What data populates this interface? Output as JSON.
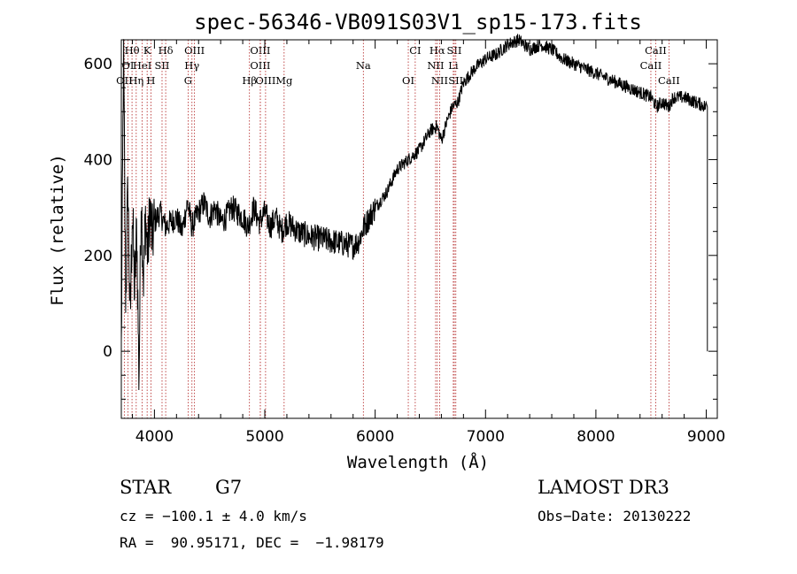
{
  "chart_data": {
    "type": "line",
    "title": "spec-56346-VB091S03V1_sp15-173.fits",
    "xlabel": "Wavelength (Å)",
    "ylabel": "Flux (relative)",
    "xlim": [
      3700,
      9100
    ],
    "ylim": [
      -140,
      650
    ],
    "x_ticks": [
      4000,
      5000,
      6000,
      7000,
      8000,
      9000
    ],
    "y_ticks": [
      0,
      200,
      400,
      600
    ],
    "series": [
      {
        "name": "flux",
        "x": [
          3700,
          3720,
          3740,
          3760,
          3780,
          3800,
          3820,
          3840,
          3860,
          3880,
          3900,
          3920,
          3940,
          3960,
          3980,
          4000,
          4050,
          4100,
          4150,
          4200,
          4250,
          4300,
          4340,
          4400,
          4450,
          4500,
          4550,
          4600,
          4650,
          4700,
          4750,
          4800,
          4850,
          4900,
          4950,
          5000,
          5050,
          5100,
          5150,
          5200,
          5300,
          5400,
          5500,
          5600,
          5700,
          5800,
          5850,
          5900,
          5950,
          6000,
          6100,
          6200,
          6300,
          6400,
          6500,
          6560,
          6600,
          6650,
          6700,
          6750,
          6800,
          6900,
          7000,
          7100,
          7200,
          7300,
          7400,
          7500,
          7600,
          7700,
          7800,
          7900,
          8000,
          8100,
          8200,
          8300,
          8400,
          8500,
          8550,
          8600,
          8660,
          8700,
          8800,
          8900,
          9000,
          9010
        ],
        "y": [
          0,
          620,
          100,
          350,
          50,
          300,
          120,
          260,
          -60,
          330,
          150,
          280,
          200,
          300,
          230,
          270,
          290,
          260,
          270,
          280,
          250,
          310,
          260,
          290,
          310,
          280,
          300,
          270,
          280,
          300,
          290,
          280,
          260,
          300,
          270,
          290,
          260,
          280,
          250,
          270,
          250,
          240,
          235,
          230,
          225,
          220,
          230,
          260,
          280,
          300,
          330,
          380,
          400,
          420,
          460,
          470,
          440,
          480,
          510,
          520,
          560,
          590,
          610,
          620,
          640,
          650,
          630,
          640,
          630,
          610,
          600,
          590,
          580,
          570,
          560,
          550,
          540,
          530,
          510,
          520,
          510,
          530,
          530,
          520,
          510,
          0
        ]
      }
    ],
    "line_markers": [
      {
        "label": "Hθ",
        "x": 3797,
        "row": 1
      },
      {
        "label": "K",
        "x": 3934,
        "row": 1
      },
      {
        "label": "Hδ",
        "x": 4102,
        "row": 1
      },
      {
        "label": "OIII",
        "x": 4363,
        "row": 1
      },
      {
        "label": "OIII",
        "x": 4959,
        "row": 1
      },
      {
        "label": "CI",
        "x": 6363,
        "row": 1
      },
      {
        "label": "Hα",
        "x": 6563,
        "row": 1
      },
      {
        "label": "SII",
        "x": 6717,
        "row": 1
      },
      {
        "label": "CaII",
        "x": 8542,
        "row": 1
      },
      {
        "label": "OI",
        "x": 3760,
        "row": 2
      },
      {
        "label": "HeI",
        "x": 3889,
        "row": 2
      },
      {
        "label": "SII",
        "x": 4069,
        "row": 2
      },
      {
        "label": "Hγ",
        "x": 4340,
        "row": 2
      },
      {
        "label": "OIII",
        "x": 4959,
        "row": 2
      },
      {
        "label": "Na",
        "x": 5893,
        "row": 2
      },
      {
        "label": "NII",
        "x": 6548,
        "row": 2
      },
      {
        "label": "Li",
        "x": 6708,
        "row": 2
      },
      {
        "label": "CaII",
        "x": 8498,
        "row": 2
      },
      {
        "label": "OII",
        "x": 3727,
        "row": 3
      },
      {
        "label": "Hη",
        "x": 3835,
        "row": 3
      },
      {
        "label": "H",
        "x": 3968,
        "row": 3
      },
      {
        "label": "G",
        "x": 4305,
        "row": 3
      },
      {
        "label": "Hβ",
        "x": 4861,
        "row": 3
      },
      {
        "label": "OIII",
        "x": 5007,
        "row": 3
      },
      {
        "label": "Mg",
        "x": 5175,
        "row": 3
      },
      {
        "label": "OI",
        "x": 6300,
        "row": 3
      },
      {
        "label": "NII",
        "x": 6584,
        "row": 3
      },
      {
        "label": "SII",
        "x": 6731,
        "row": 3
      },
      {
        "label": "CaII",
        "x": 8662,
        "row": 3
      }
    ]
  },
  "info": {
    "object_class": "STAR",
    "subclass": "G7",
    "survey": "LAMOST DR3",
    "cz": "cz = −100.1 ± 4.0 km/s",
    "obs_date": "Obs−Date: 20130222",
    "coords": "RA =  90.95171, DEC =  −1.98179"
  }
}
